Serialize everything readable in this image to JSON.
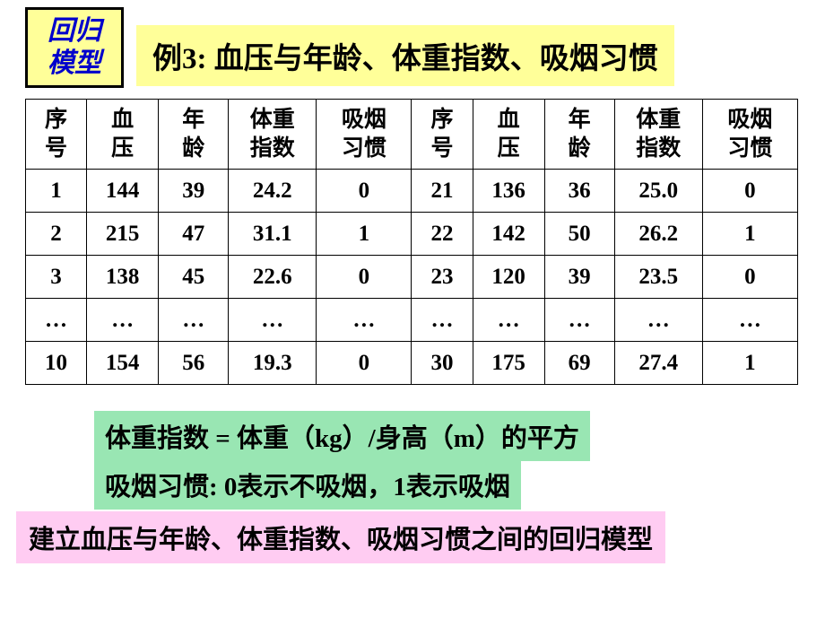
{
  "badge": {
    "line1": "回归",
    "line2": "模型"
  },
  "title": {
    "ex": "例3:",
    "text": " 血压与年龄、体重指数、吸烟习惯"
  },
  "headers": {
    "seq": "序\n号",
    "bp": "血\n压",
    "age": "年\n龄",
    "bmi": "体重\n指数",
    "smoke": "吸烟\n习惯"
  },
  "rows": [
    {
      "l": [
        "1",
        "144",
        "39",
        "24.2",
        "0"
      ],
      "r": [
        "21",
        "136",
        "36",
        "25.0",
        "0"
      ]
    },
    {
      "l": [
        "2",
        "215",
        "47",
        "31.1",
        "1"
      ],
      "r": [
        "22",
        "142",
        "50",
        "26.2",
        "1"
      ]
    },
    {
      "l": [
        "3",
        "138",
        "45",
        "22.6",
        "0"
      ],
      "r": [
        "23",
        "120",
        "39",
        "23.5",
        "0"
      ]
    },
    {
      "l": [
        "…",
        "…",
        "…",
        "…",
        "…"
      ],
      "r": [
        "…",
        "…",
        "…",
        "…",
        "…"
      ]
    },
    {
      "l": [
        "10",
        "154",
        "56",
        "19.3",
        "0"
      ],
      "r": [
        "30",
        "175",
        "69",
        "27.4",
        "1"
      ]
    }
  ],
  "note1": "体重指数 = 体重（kg）/身高（m）的平方",
  "note2": "吸烟习惯: 0表示不吸烟，1表示吸烟",
  "note3": "建立血压与年龄、体重指数、吸烟习惯之间的回归模型",
  "colors": {
    "badge_bg": "#ffff99",
    "badge_text": "#0000cc",
    "title_bg": "#ffff99",
    "note_green": "#99e6b3",
    "note_pink": "#ffccf2",
    "border": "#000000",
    "page_bg": "#ffffff"
  }
}
